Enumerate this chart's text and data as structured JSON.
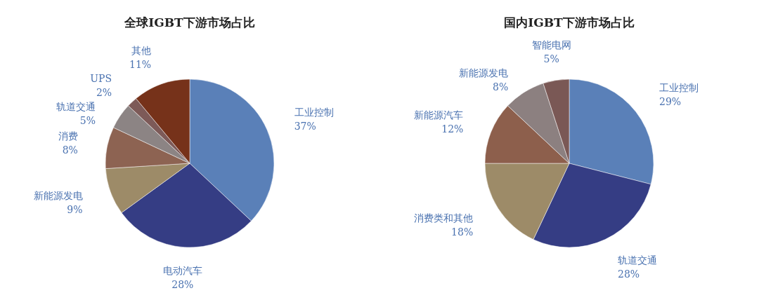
{
  "chart_data": [
    {
      "type": "pie",
      "title": "全球IGBT下游市场占比",
      "categories": [
        "工业控制",
        "电动汽车",
        "新能源发电",
        "消费",
        "轨道交通",
        "UPS",
        "其他"
      ],
      "values": [
        37,
        28,
        9,
        8,
        5,
        2,
        11
      ],
      "value_labels": [
        "37%",
        "28%",
        "9%",
        "8%",
        "5%",
        "2%",
        "11%"
      ],
      "colors": [
        "#5a80b8",
        "#353d84",
        "#9d8b68",
        "#8d6352",
        "#8c8484",
        "#7d5a58",
        "#76321a"
      ]
    },
    {
      "type": "pie",
      "title": "国内IGBT下游市场占比",
      "categories": [
        "工业控制",
        "轨道交通",
        "消费类和其他",
        "新能源汽车",
        "新能源发电",
        "智能电网"
      ],
      "values": [
        29,
        28,
        18,
        12,
        8,
        5
      ],
      "value_labels": [
        "29%",
        "28%",
        "18%",
        "12%",
        "8%",
        "5%"
      ],
      "colors": [
        "#5a80b8",
        "#353d84",
        "#9d8b68",
        "#8d5f4c",
        "#8c8080",
        "#7a5855"
      ]
    }
  ]
}
